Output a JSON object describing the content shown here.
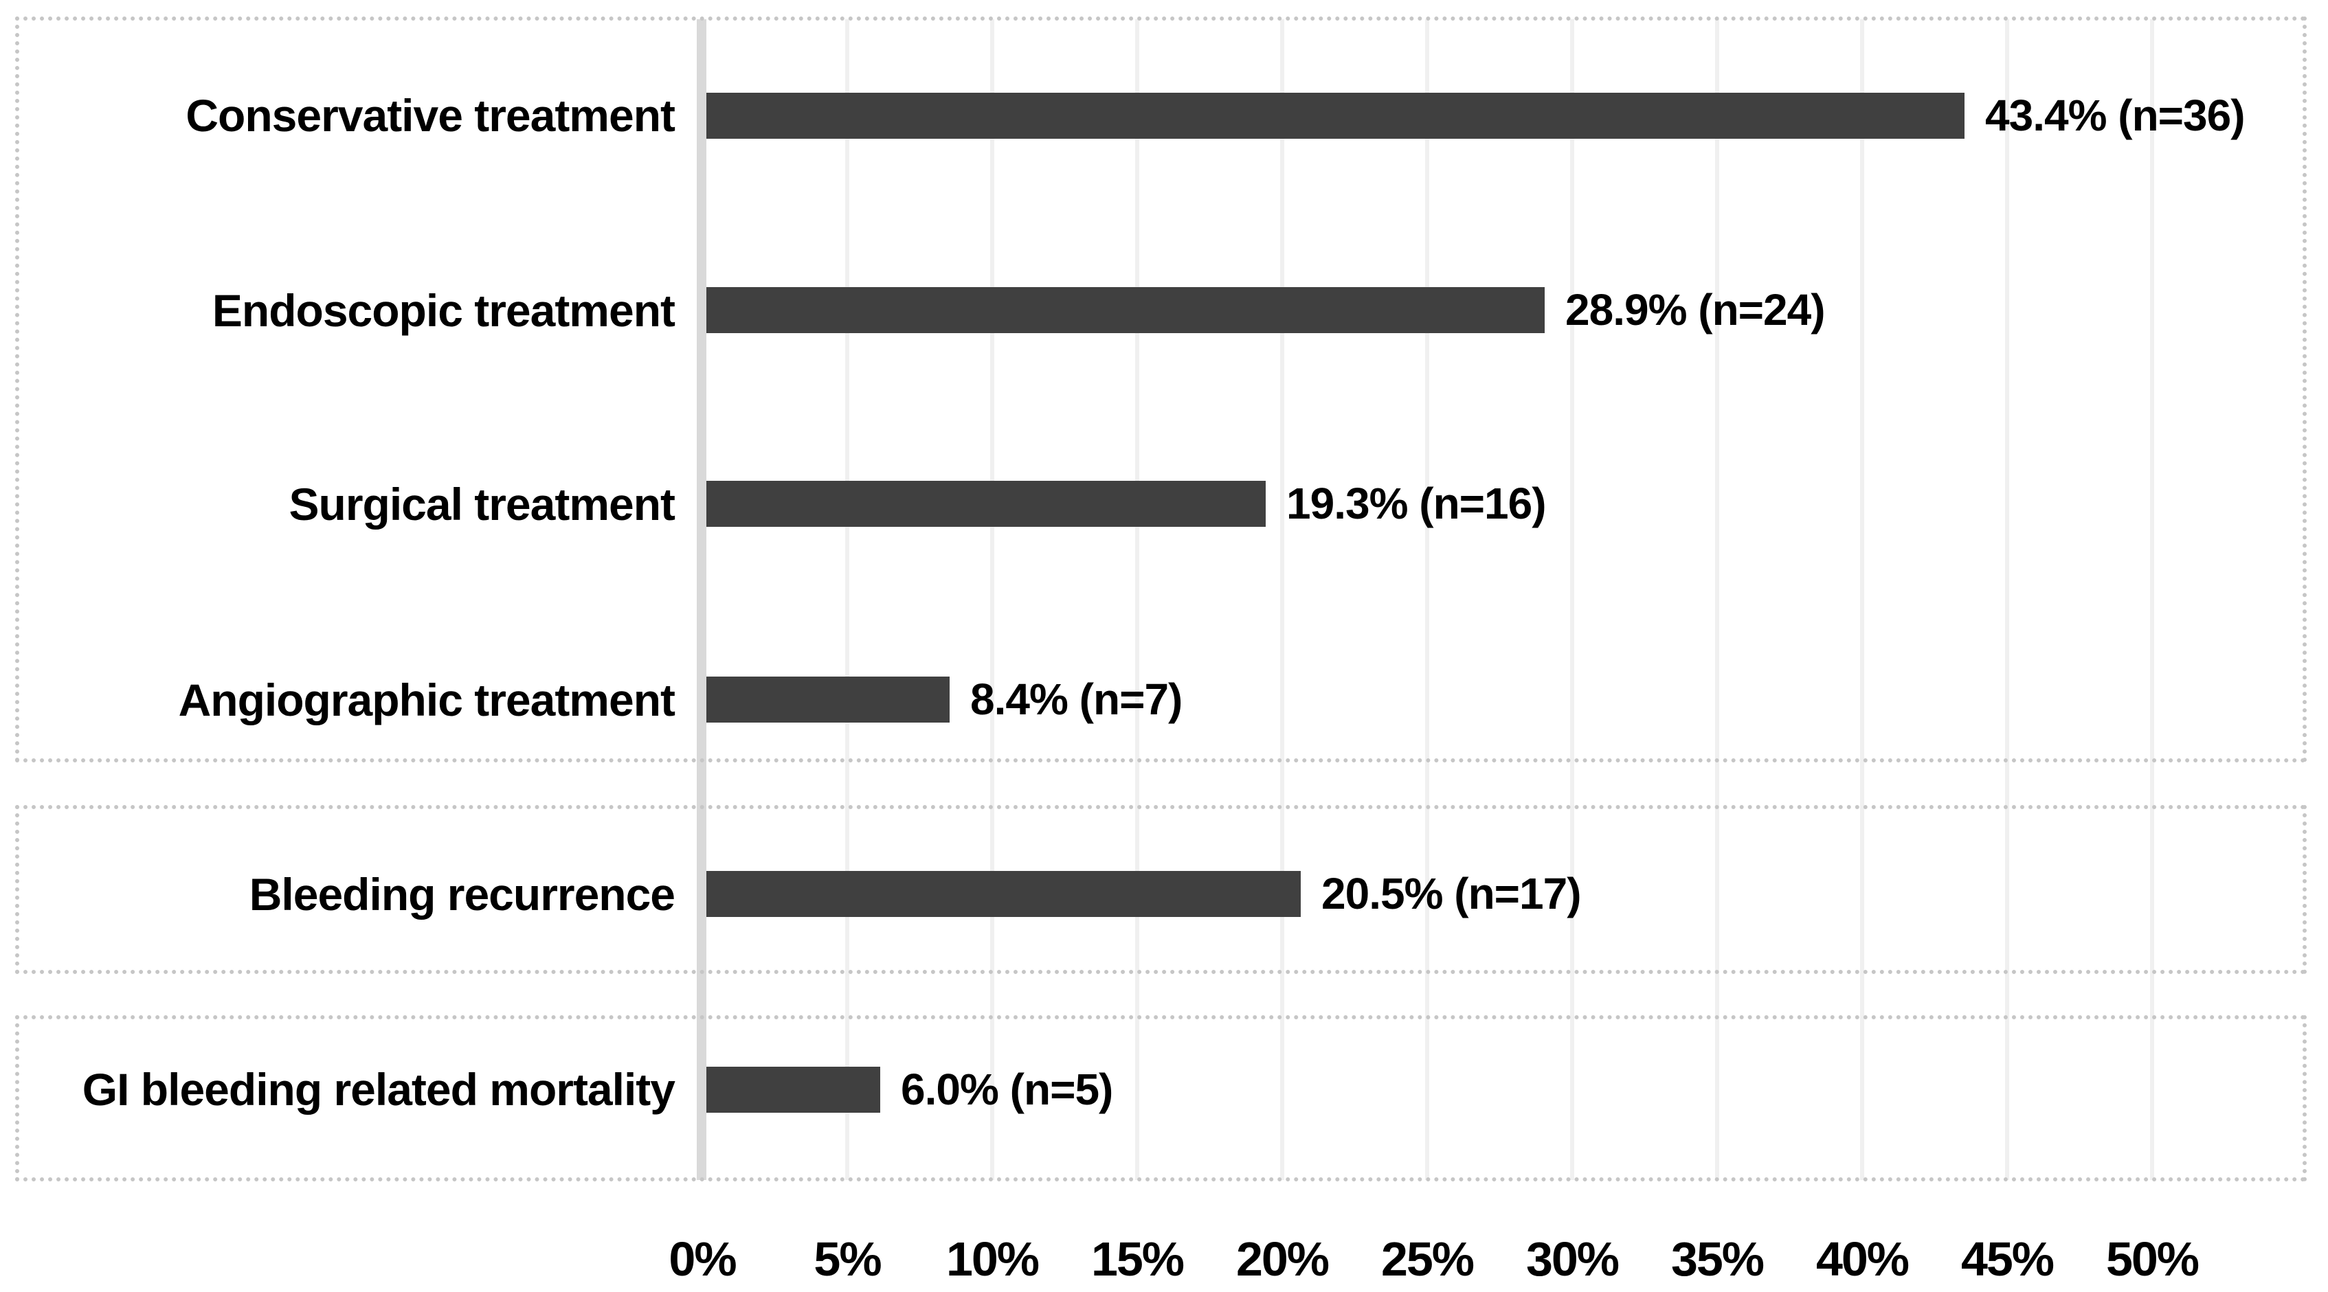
{
  "figure": {
    "background_color": "#ffffff",
    "bar_color": "#404040",
    "axis_line_color": "#d9d9d9",
    "gridline_color": "#f0f0f0",
    "group_box_border_color": "#c6c6c6",
    "text_color": "#000000"
  },
  "chart_data": {
    "type": "bar",
    "orientation": "horizontal",
    "title": "",
    "xlabel": "",
    "ylabel": "",
    "xlim": [
      0,
      55
    ],
    "grid": "vertical gridlines every 5%",
    "legend": "none",
    "x_ticks": [
      {
        "value": 0,
        "label": "0%"
      },
      {
        "value": 5,
        "label": "5%"
      },
      {
        "value": 10,
        "label": "10%"
      },
      {
        "value": 15,
        "label": "15%"
      },
      {
        "value": 20,
        "label": "20%"
      },
      {
        "value": 25,
        "label": "25%"
      },
      {
        "value": 30,
        "label": "30%"
      },
      {
        "value": 35,
        "label": "35%"
      },
      {
        "value": 40,
        "label": "40%"
      },
      {
        "value": 45,
        "label": "45%"
      },
      {
        "value": 50,
        "label": "50%"
      }
    ],
    "groups": [
      {
        "id": "treatment-modalities",
        "row_indexes": [
          0,
          1,
          2,
          3
        ]
      },
      {
        "id": "bleeding-recurrence",
        "row_indexes": [
          4
        ]
      },
      {
        "id": "gi-bleeding-related-mortality",
        "row_indexes": [
          5
        ]
      }
    ],
    "rows": [
      {
        "label": "Conservative treatment",
        "value_pct": 43.4,
        "n": 36,
        "data_label": "43.4% (n=36)"
      },
      {
        "label": "Endoscopic treatment",
        "value_pct": 28.9,
        "n": 24,
        "data_label": "28.9% (n=24)"
      },
      {
        "label": "Surgical treatment",
        "value_pct": 19.3,
        "n": 16,
        "data_label": "19.3% (n=16)"
      },
      {
        "label": "Angiographic treatment",
        "value_pct": 8.4,
        "n": 7,
        "data_label": "8.4% (n=7)"
      },
      {
        "label": "Bleeding recurrence",
        "value_pct": 20.5,
        "n": 17,
        "data_label": "20.5% (n=17)"
      },
      {
        "label": "GI bleeding related mortality",
        "value_pct": 6.0,
        "n": 5,
        "data_label": "6.0% (n=5)"
      }
    ]
  }
}
